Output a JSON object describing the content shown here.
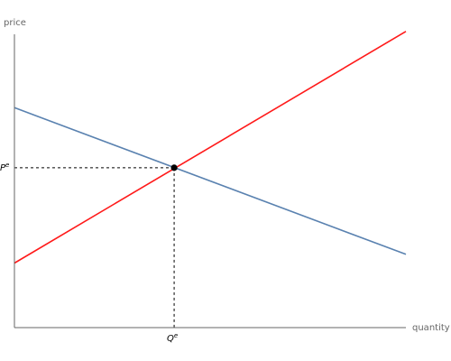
{
  "chart_data": {
    "type": "line",
    "title": "",
    "xlabel": "quantity",
    "ylabel": "price",
    "xlim": [
      0,
      10
    ],
    "ylim": [
      0,
      10
    ],
    "grid": false,
    "legend": "none",
    "series": [
      {
        "color": "#5a82b0",
        "x": [
          0,
          10
        ],
        "y": [
          7.5,
          2.5
        ]
      },
      {
        "color": "#ff1a1a",
        "x": [
          0,
          10
        ],
        "y": [
          2.2,
          10.1
        ]
      }
    ],
    "equilibrium": {
      "q": 4.08,
      "p": 5.45,
      "q_label": "Q",
      "q_label_sup": "e",
      "p_label": "P",
      "p_label_sup": "e"
    }
  }
}
